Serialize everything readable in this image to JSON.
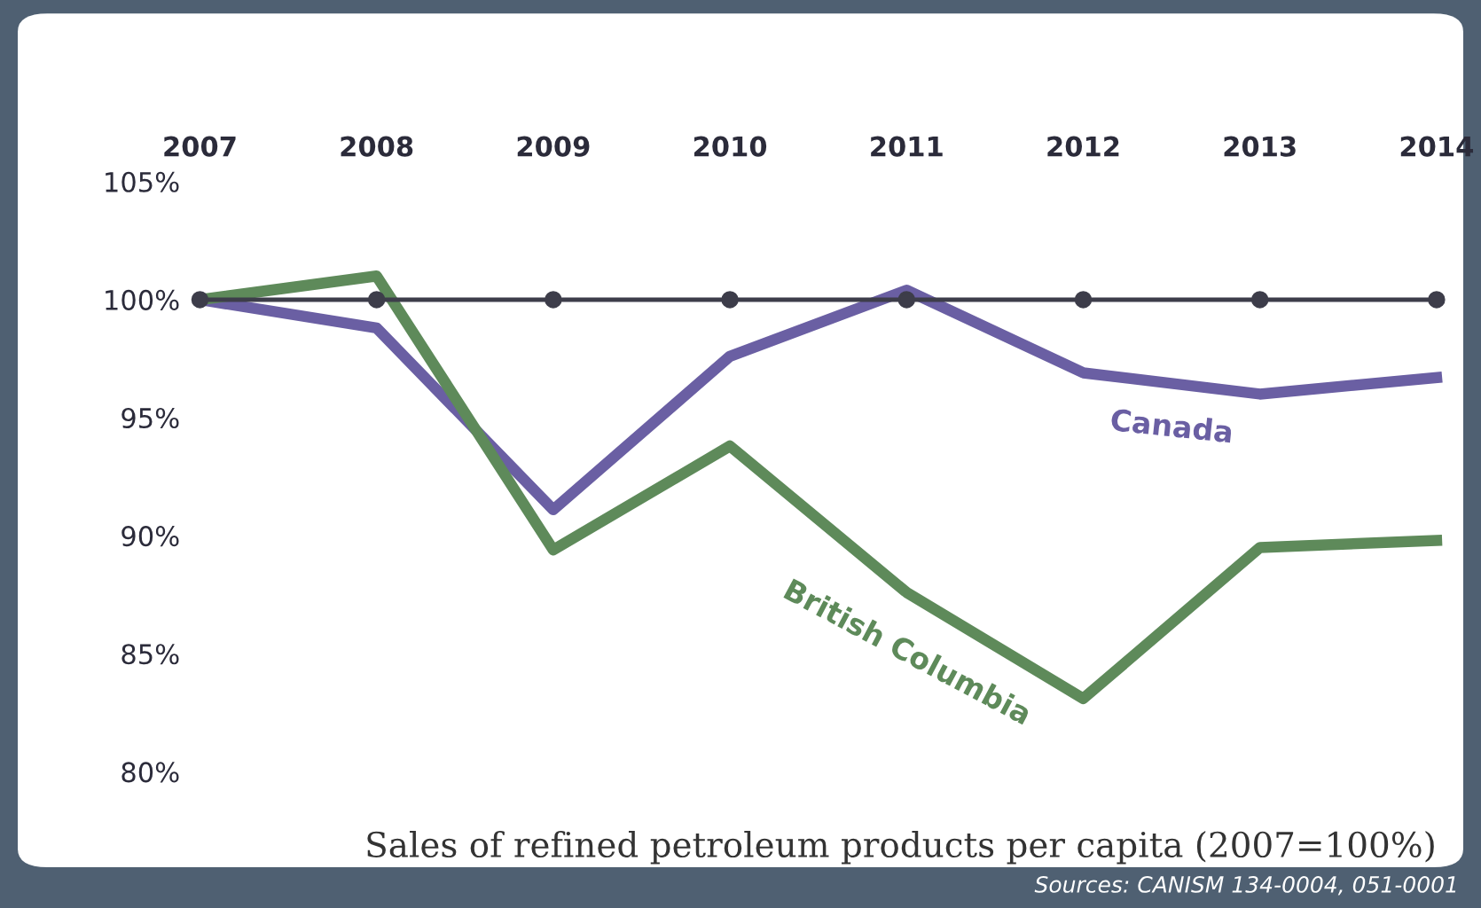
{
  "chart_data": {
    "type": "line",
    "title": "Sales of refined petroleum products per capita (2007=100%)",
    "x": [
      2007,
      2008,
      2009,
      2010,
      2011,
      2012,
      2013,
      2014
    ],
    "series": [
      {
        "color": "#3d3d4a",
        "values": [
          100,
          100,
          100,
          100,
          100,
          100,
          100,
          100
        ],
        "marker": "circle"
      },
      {
        "name": "Canada",
        "color": "#6a5fa3",
        "values": [
          100,
          98.8,
          91.1,
          97.6,
          100.4,
          96.9,
          96.0,
          96.7
        ],
        "marker": "none"
      },
      {
        "name": "British Columbia",
        "color": "#5e8a5a",
        "values": [
          100,
          101,
          89.4,
          93.8,
          87.6,
          83.1,
          89.5,
          89.8
        ],
        "marker": "none"
      }
    ],
    "xlim": [
      2007,
      2014
    ],
    "xticks": [
      2007,
      2008,
      2009,
      2010,
      2011,
      2012,
      2013,
      2014
    ],
    "ylim": [
      80,
      105
    ],
    "yticks": [
      {
        "value": 80,
        "label": "80%"
      },
      {
        "value": 85,
        "label": "85%"
      },
      {
        "value": 90,
        "label": "90%"
      },
      {
        "value": 95,
        "label": "95%"
      },
      {
        "value": 100,
        "label": "100%"
      },
      {
        "value": 105,
        "label": "105%"
      }
    ],
    "grid": false,
    "legend": false,
    "annotations": [
      "Sources: CANISM 134-0004, 051-0001"
    ]
  }
}
